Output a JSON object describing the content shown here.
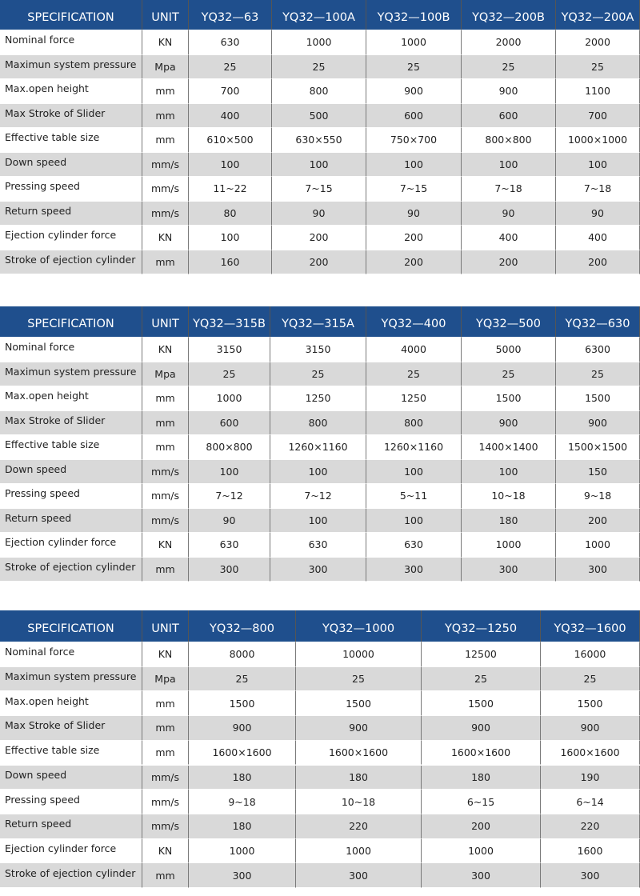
{
  "tables": [
    {
      "header": [
        "SPECIFICATION",
        "UNIT",
        "YQ32—63",
        "YQ32—100A",
        "YQ32—100B",
        "YQ32—200B",
        "YQ32—200A"
      ],
      "rows": [
        [
          "Nominal force",
          "KN",
          630,
          1000,
          1000,
          2000,
          2000
        ],
        [
          "Maximun system pressure",
          "Mpa",
          25,
          25,
          25,
          25,
          25
        ],
        [
          "Max.open height",
          "mm",
          700,
          800,
          900,
          900,
          1100
        ],
        [
          "Max Stroke of Slider",
          "mm",
          400,
          500,
          600,
          600,
          700
        ],
        [
          "Effective table size",
          "mm",
          "610×500",
          "630×550",
          "750×700",
          "800×800",
          "1000×1000"
        ],
        [
          "Down speed",
          "mm/s",
          100,
          100,
          100,
          100,
          100
        ],
        [
          "Pressing speed",
          "mm/s",
          "11~22",
          "7~15",
          "7~15",
          "7~18",
          "7~18"
        ],
        [
          "Return speed",
          "mm/s",
          80,
          90,
          90,
          90,
          90
        ],
        [
          "Ejection cylinder force",
          "KN",
          100,
          200,
          200,
          400,
          400
        ],
        [
          "Stroke of ejection cylinder",
          "mm",
          160,
          200,
          200,
          200,
          200
        ]
      ]
    },
    {
      "header": [
        "SPECIFICATION",
        "UNIT",
        "YQ32—315B",
        "YQ32—315A",
        "YQ32—400",
        "YQ32—500",
        "YQ32—630"
      ],
      "rows": [
        [
          "Nominal force",
          "KN",
          3150,
          3150,
          4000,
          5000,
          6300
        ],
        [
          "Maximun system pressure",
          "Mpa",
          25,
          25,
          25,
          25,
          25
        ],
        [
          "Max.open height",
          "mm",
          1000,
          1250,
          1250,
          1500,
          1500
        ],
        [
          "Max Stroke of Slider",
          "mm",
          600,
          800,
          800,
          900,
          900
        ],
        [
          "Effective table size",
          "mm",
          "800×800",
          "1260×1160",
          "1260×1160",
          "1400×1400",
          "1500×1500"
        ],
        [
          "Down speed",
          "mm/s",
          100,
          100,
          100,
          100,
          150
        ],
        [
          "Pressing speed",
          "mm/s",
          "7~12",
          "7~12",
          "5~11",
          "10~18",
          "9~18"
        ],
        [
          "Return speed",
          "mm/s",
          90,
          100,
          100,
          180,
          200
        ],
        [
          "Ejection cylinder force",
          "KN",
          630,
          630,
          630,
          1000,
          1000
        ],
        [
          "Stroke of ejection cylinder",
          "mm",
          300,
          300,
          300,
          300,
          300
        ]
      ]
    },
    {
      "header": [
        "SPECIFICATION",
        "UNIT",
        "YQ32—800",
        "YQ32—1000",
        "YQ32—1250",
        "YQ32—1600"
      ],
      "rows": [
        [
          "Nominal force",
          "KN",
          8000,
          10000,
          12500,
          16000
        ],
        [
          "Maximun system pressure",
          "Mpa",
          25,
          25,
          25,
          25
        ],
        [
          "Max.open height",
          "mm",
          1500,
          1500,
          1500,
          1500
        ],
        [
          "Max Stroke of Slider",
          "mm",
          900,
          900,
          900,
          900
        ],
        [
          "Effective table size",
          "mm",
          "1600×1600",
          "1600×1600",
          "1600×1600",
          "1600×1600"
        ],
        [
          "Down speed",
          "mm/s",
          180,
          180,
          180,
          190
        ],
        [
          "Pressing speed",
          "mm/s",
          "9~18",
          "10~18",
          "6~15",
          "6~14"
        ],
        [
          "Return speed",
          "mm/s",
          180,
          220,
          200,
          220
        ],
        [
          "Ejection cylinder force",
          "KN",
          1000,
          1000,
          1000,
          1600
        ],
        [
          "Stroke of ejection cylinder",
          "mm",
          300,
          300,
          300,
          300
        ]
      ]
    }
  ]
}
